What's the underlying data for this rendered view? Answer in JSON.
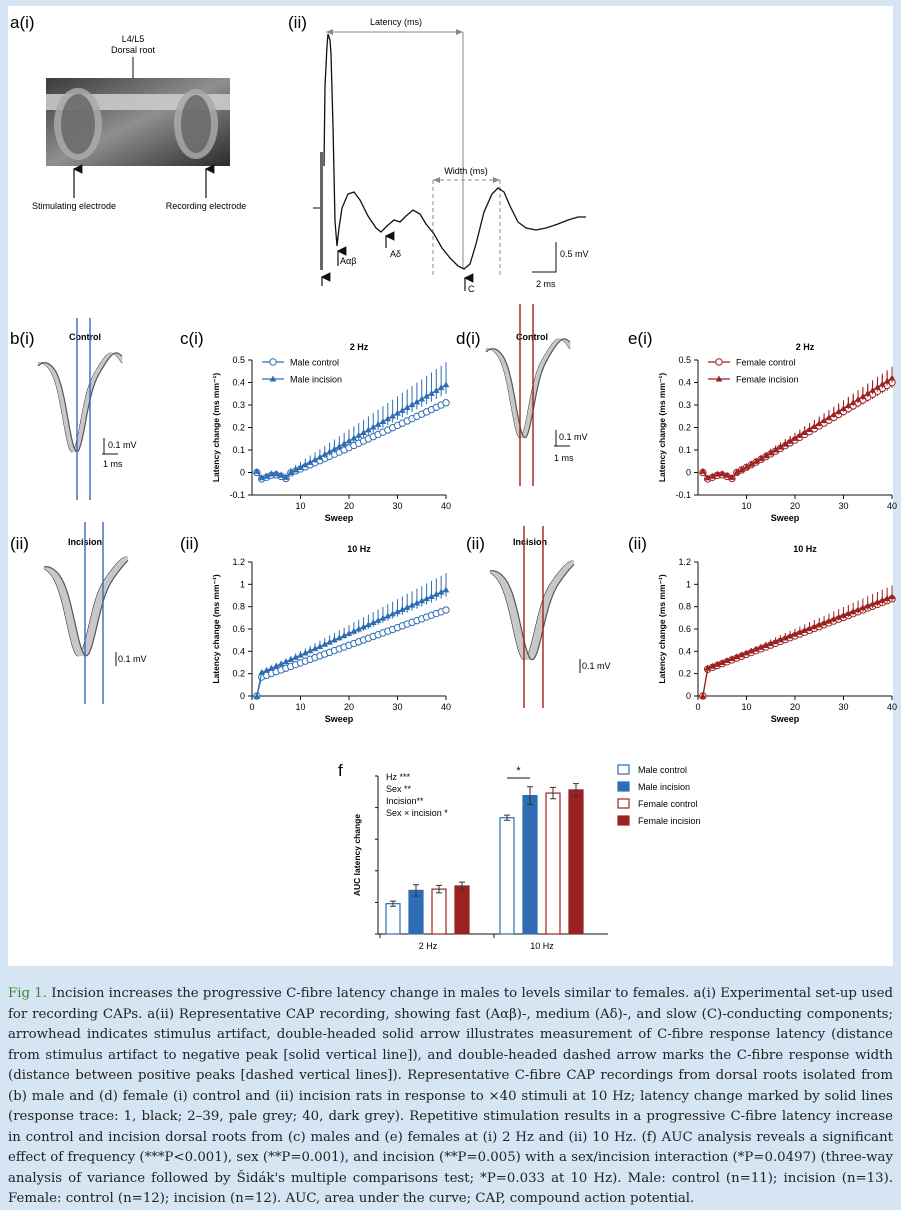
{
  "panels": {
    "a": {
      "label_i": "a(i)",
      "label_ii": "(ii)",
      "root_label_1": "L4/L5",
      "root_label_2": "Dorsal root",
      "stim_electrode": "Stimulating electrode",
      "rec_electrode": "Recording electrode",
      "latency_label": "Latency (ms)",
      "width_label": "Width (ms)",
      "abeta": "Aαβ",
      "adelta": "Aδ",
      "c": "C",
      "scale_mv": "0.5 mV",
      "scale_ms": "2 ms"
    },
    "b": {
      "label_i": "b(i)",
      "label_ii": "(ii)",
      "title_i": "Control",
      "title_ii": "Incision",
      "scale_mv": "0.1 mV",
      "scale_ms": "1 ms"
    },
    "d": {
      "label_i": "d(i)",
      "label_ii": "(ii)",
      "title_i": "Control",
      "title_ii": "Incision",
      "scale_mv": "0.1 mV",
      "scale_ms": "1 ms"
    },
    "c": {
      "label_i": "c(i)",
      "label_ii": "(ii)"
    },
    "e": {
      "label_i": "e(i)",
      "label_ii": "(ii)"
    },
    "f": {
      "label": "f",
      "stats": [
        "Hz ***",
        "Sex **",
        "Incision**",
        "Sex × incision *"
      ],
      "sig_mark": "*"
    }
  },
  "chart_data": [
    {
      "id": "c-i",
      "type": "line",
      "title": "2 Hz",
      "xlabel": "Sweep",
      "ylabel": "Latency change (ms mm⁻¹)",
      "xlim": [
        0,
        40
      ],
      "ylim": [
        -0.1,
        0.5
      ],
      "xticks": [
        10,
        20,
        30,
        40
      ],
      "yticks": [
        -0.1,
        0,
        0.1,
        0.2,
        0.3,
        0.4,
        0.5
      ],
      "color": "#2e6db3",
      "series": [
        {
          "name": "Male control",
          "marker": "open-circle",
          "end": 0.31,
          "error": 0.07
        },
        {
          "name": "Male incision",
          "marker": "filled-triangle",
          "end": 0.39,
          "error": 0.1
        }
      ]
    },
    {
      "id": "c-ii",
      "type": "line",
      "title": "10 Hz",
      "xlabel": "Sweep",
      "ylabel": "Latency change (ms mm⁻¹)",
      "xlim": [
        0,
        40
      ],
      "ylim": [
        0,
        1.2
      ],
      "xticks": [
        0,
        10,
        20,
        30,
        40
      ],
      "yticks": [
        0,
        0.2,
        0.4,
        0.6,
        0.8,
        1.0,
        1.2
      ],
      "color": "#2e6db3",
      "series": [
        {
          "name": "Male control",
          "marker": "open-circle",
          "start": 0.17,
          "end": 0.77,
          "error": 0.06
        },
        {
          "name": "Male incision",
          "marker": "filled-triangle",
          "start": 0.21,
          "end": 0.95,
          "error": 0.15
        }
      ]
    },
    {
      "id": "e-i",
      "type": "line",
      "title": "2 Hz",
      "xlabel": "Sweep",
      "ylabel": "Latency change (ms mm⁻¹)",
      "xlim": [
        0,
        40
      ],
      "ylim": [
        -0.1,
        0.5
      ],
      "xticks": [
        10,
        20,
        30,
        40
      ],
      "yticks": [
        -0.1,
        0,
        0.1,
        0.2,
        0.3,
        0.4,
        0.5
      ],
      "color": "#9b2222",
      "series": [
        {
          "name": "Female control",
          "marker": "open-circle",
          "end": 0.4,
          "error": 0.06
        },
        {
          "name": "Female incision",
          "marker": "filled-triangle",
          "end": 0.42,
          "error": 0.05
        }
      ]
    },
    {
      "id": "e-ii",
      "type": "line",
      "title": "10 Hz",
      "xlabel": "Sweep",
      "ylabel": "Latency change (ms mm⁻¹)",
      "xlim": [
        0,
        40
      ],
      "ylim": [
        0,
        1.2
      ],
      "xticks": [
        0,
        10,
        20,
        30,
        40
      ],
      "yticks": [
        0,
        0.2,
        0.4,
        0.6,
        0.8,
        1.0,
        1.2
      ],
      "color": "#9b2222",
      "series": [
        {
          "name": "Female control",
          "marker": "open-circle",
          "start": 0.24,
          "end": 0.87,
          "error": 0.06
        },
        {
          "name": "Female incision",
          "marker": "filled-triangle",
          "start": 0.25,
          "end": 0.89,
          "error": 0.1
        }
      ]
    },
    {
      "id": "f",
      "type": "bar",
      "ylabel": "AUC latency change",
      "categories": [
        "2 Hz",
        "10 Hz"
      ],
      "series": [
        {
          "name": "Male control",
          "style": "open",
          "color": "#2e6db3",
          "values": [
            4.8,
            18.4
          ],
          "errors": [
            0.4,
            0.4
          ]
        },
        {
          "name": "Male incision",
          "style": "filled",
          "color": "#2e6db3",
          "values": [
            6.9,
            21.9
          ],
          "errors": [
            0.9,
            1.4
          ]
        },
        {
          "name": "Female control",
          "style": "open",
          "color": "#9b2222",
          "values": [
            7.1,
            22.3
          ],
          "errors": [
            0.6,
            0.9
          ]
        },
        {
          "name": "Female incision",
          "style": "filled",
          "color": "#9b2222",
          "values": [
            7.6,
            22.8
          ],
          "errors": [
            0.6,
            1.0
          ]
        }
      ],
      "ylim": [
        0,
        25
      ]
    }
  ],
  "caption": {
    "lead": "Fig 1.",
    "body": "Incision increases the progressive C-fibre latency change in males to levels similar to females. a(i) Experimental set-up used for recording CAPs. a(ii) Representative CAP recording, showing fast (Aαβ)-, medium (Aδ)-, and slow (C)-conducting components; arrowhead indicates stimulus artifact, double-headed solid arrow illustrates measurement of C-fibre response latency (distance from stimulus artifact to negative peak [solid vertical line]), and double-headed dashed arrow marks the C-fibre response width (distance between positive peaks [dashed vertical lines]). Representative C-fibre CAP recordings from dorsal roots isolated from (b) male and (d) female (i) control and (ii) incision rats in response to ×40 stimuli at 10 Hz; latency change marked by solid lines (response trace: 1, black; 2–39, pale grey; 40, dark grey). Repetitive stimulation results in a progressive C-fibre latency increase in control and incision dorsal roots from (c) males and (e) females at (i) 2 Hz and (ii) 10 Hz. (f) AUC analysis reveals a significant effect of frequency (***P<0.001), sex (**P=0.001), and incision (**P=0.005) with a sex/incision interaction (*P=0.0497) (three-way analysis of variance followed by Šidák's multiple comparisons test; *P=0.033 at 10 Hz). Male: control (n=11); incision (n=13). Female: control (n=12); incision (n=12). AUC, area under the curve; CAP, compound action potential."
  }
}
